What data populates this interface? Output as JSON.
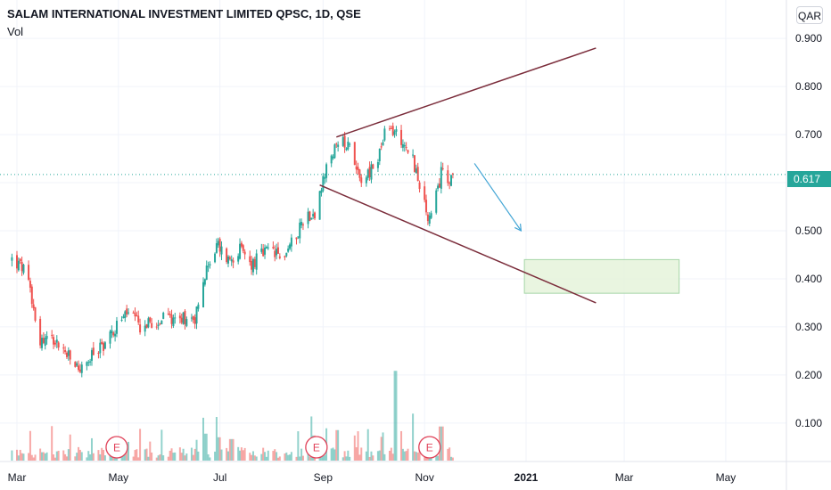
{
  "header": {
    "title": "SALAM INTERNATIONAL INVESTMENT LIMITED QPSC, 1D, QSE",
    "indicator": "Vol",
    "currency": "QAR"
  },
  "last_price": "0.617",
  "colors": {
    "up": "#26a69a",
    "down": "#ef5350",
    "trendline": "#7b2d3b",
    "arrow": "#42a5d5",
    "target_fill": "#e3f2d8",
    "target_border": "#a5d6a7",
    "grid": "#f0f3fa",
    "earnings": "#e0435a"
  },
  "chart_data": {
    "type": "candlestick",
    "ylim": [
      0.02,
      0.98
    ],
    "yticks": [
      {
        "value": 0.9,
        "label": "0.900"
      },
      {
        "value": 0.8,
        "label": "0.800"
      },
      {
        "value": 0.7,
        "label": "0.700"
      },
      {
        "value": 0.6,
        "label": "0.600"
      },
      {
        "value": 0.5,
        "label": "0.500"
      },
      {
        "value": 0.4,
        "label": "0.400"
      },
      {
        "value": 0.3,
        "label": "0.300"
      },
      {
        "value": 0.2,
        "label": "0.200"
      },
      {
        "value": 0.1,
        "label": "0.100"
      }
    ],
    "xticks": [
      {
        "date": "2020-03-01",
        "label": "Mar",
        "bold": false
      },
      {
        "date": "2020-05-01",
        "label": "May",
        "bold": false
      },
      {
        "date": "2020-07-01",
        "label": "Jul",
        "bold": false
      },
      {
        "date": "2020-09-01",
        "label": "Sep",
        "bold": false
      },
      {
        "date": "2020-11-01",
        "label": "Nov",
        "bold": false
      },
      {
        "date": "2021-01-01",
        "label": "2021",
        "bold": true
      },
      {
        "date": "2021-03-01",
        "label": "Mar",
        "bold": false
      },
      {
        "date": "2021-05-01",
        "label": "May",
        "bold": false
      }
    ],
    "last_price": 0.617,
    "price_path": [
      [
        "2020-02-27",
        0.44
      ],
      [
        "2020-03-05",
        0.42
      ],
      [
        "2020-03-10",
        0.36
      ],
      [
        "2020-03-15",
        0.27
      ],
      [
        "2020-03-22",
        0.28
      ],
      [
        "2020-03-29",
        0.25
      ],
      [
        "2020-04-05",
        0.22
      ],
      [
        "2020-04-10",
        0.21
      ],
      [
        "2020-04-17",
        0.25
      ],
      [
        "2020-04-24",
        0.27
      ],
      [
        "2020-05-01",
        0.31
      ],
      [
        "2020-05-07",
        0.33
      ],
      [
        "2020-05-14",
        0.3
      ],
      [
        "2020-05-21",
        0.31
      ],
      [
        "2020-06-01",
        0.32
      ],
      [
        "2020-06-16",
        0.32
      ],
      [
        "2020-06-20",
        0.38
      ],
      [
        "2020-06-25",
        0.44
      ],
      [
        "2020-06-30",
        0.47
      ],
      [
        "2020-07-06",
        0.44
      ],
      [
        "2020-07-13",
        0.46
      ],
      [
        "2020-07-20",
        0.43
      ],
      [
        "2020-07-26",
        0.45
      ],
      [
        "2020-08-01",
        0.46
      ],
      [
        "2020-08-07",
        0.44
      ],
      [
        "2020-08-14",
        0.48
      ],
      [
        "2020-08-21",
        0.53
      ],
      [
        "2020-08-28",
        0.54
      ],
      [
        "2020-09-01",
        0.6
      ],
      [
        "2020-09-06",
        0.66
      ],
      [
        "2020-09-12",
        0.68
      ],
      [
        "2020-09-17",
        0.69
      ],
      [
        "2020-09-21",
        0.63
      ],
      [
        "2020-09-24",
        0.61
      ],
      [
        "2020-09-29",
        0.62
      ],
      [
        "2020-10-03",
        0.64
      ],
      [
        "2020-10-08",
        0.7
      ],
      [
        "2020-10-12",
        0.71
      ],
      [
        "2020-10-16",
        0.7
      ],
      [
        "2020-10-20",
        0.68
      ],
      [
        "2020-10-24",
        0.66
      ],
      [
        "2020-10-28",
        0.61
      ],
      [
        "2020-11-01",
        0.55
      ],
      [
        "2020-11-04",
        0.52
      ],
      [
        "2020-11-06",
        0.55
      ],
      [
        "2020-11-09",
        0.58
      ],
      [
        "2020-11-12",
        0.64
      ],
      [
        "2020-11-15",
        0.61
      ],
      [
        "2020-11-18",
        0.617
      ]
    ],
    "volume_ylim": [
      0,
      0.34
    ],
    "high_volume_spikes": [
      [
        "2020-06-22",
        0.075
      ],
      [
        "2020-06-30",
        0.065
      ],
      [
        "2020-07-08",
        0.06
      ],
      [
        "2020-08-26",
        0.07
      ],
      [
        "2020-09-04",
        0.09
      ],
      [
        "2020-09-10",
        0.085
      ],
      [
        "2020-09-19",
        0.07
      ],
      [
        "2020-10-15",
        0.25
      ],
      [
        "2020-10-24",
        0.08
      ],
      [
        "2020-11-05",
        0.065
      ],
      [
        "2020-11-11",
        0.095
      ]
    ],
    "earnings_dates": [
      "2020-04-30",
      "2020-08-28",
      "2020-11-04"
    ],
    "earnings_label": "E",
    "drawings": {
      "channel_upper": [
        [
          "2020-09-09",
          0.695
        ],
        [
          "2021-02-12",
          0.88
        ]
      ],
      "channel_lower": [
        [
          "2020-08-30",
          0.595
        ],
        [
          "2021-02-12",
          0.35
        ]
      ],
      "forecast_arrow": [
        [
          "2020-12-01",
          0.64
        ],
        [
          "2020-12-29",
          0.5
        ]
      ],
      "target_box": {
        "from": "2020-12-31",
        "to": "2021-04-03",
        "top": 0.44,
        "bottom": 0.37
      }
    }
  }
}
